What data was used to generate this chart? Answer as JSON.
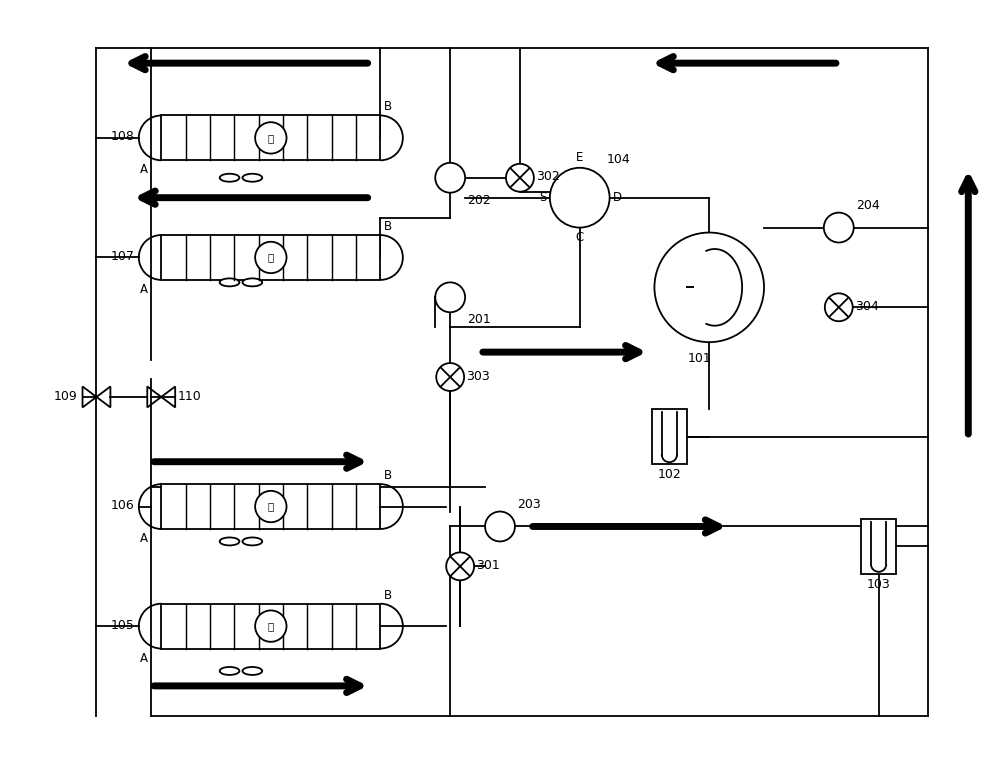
{
  "bg_color": "#ffffff",
  "lc": "#000000",
  "lw": 1.3,
  "fig_w": 10.0,
  "fig_h": 7.67,
  "dpi": 100,
  "xlim": [
    0,
    100
  ],
  "ylim": [
    0,
    76.7
  ]
}
